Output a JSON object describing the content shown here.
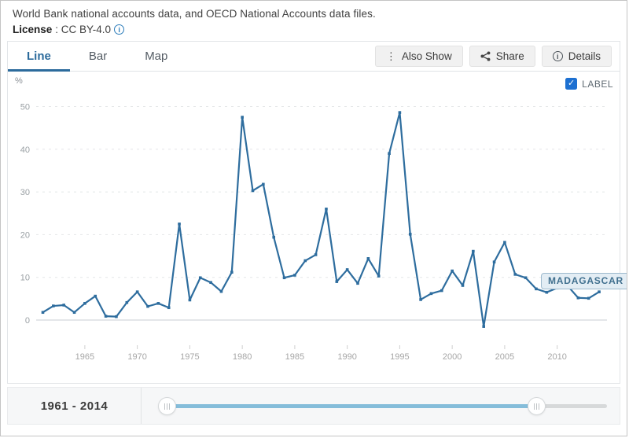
{
  "header": {
    "source_line": "World Bank national accounts data, and OECD National Accounts data files.",
    "license_label": "License",
    "license_value": ": CC BY-4.0",
    "license_info_icon": "info-circle-icon"
  },
  "tabs": [
    {
      "label": "Line",
      "active": true
    },
    {
      "label": "Bar",
      "active": false
    },
    {
      "label": "Map",
      "active": false
    }
  ],
  "toolbar": {
    "also_show_label": "Also Show",
    "share_label": "Share",
    "details_label": "Details"
  },
  "chart": {
    "unit_label": "%",
    "label_checkbox_text": "LABEL",
    "label_checkbox_checked": true,
    "checkmark": "✓",
    "series_tag": "MADAGASCAR",
    "colors": {
      "line": "#2e6d9e",
      "active_tab": "#2c6b9c",
      "checkbox": "#1d70d1",
      "grid": "#e4e6e8",
      "zero_axis": "#c9ced3",
      "axis_text": "#9aa0a4",
      "slider_fill": "#85bdda"
    }
  },
  "chart_data": {
    "type": "line",
    "title": "",
    "xlabel": "",
    "ylabel": "%",
    "grid": "horizontal-dashed",
    "ylim": [
      -5,
      53
    ],
    "yticks": [
      0,
      10,
      20,
      30,
      40,
      50
    ],
    "xticks": [
      1965,
      1970,
      1975,
      1980,
      1985,
      1990,
      1995,
      2000,
      2005,
      2010
    ],
    "x": [
      1961,
      1962,
      1963,
      1964,
      1965,
      1966,
      1967,
      1968,
      1969,
      1970,
      1971,
      1972,
      1973,
      1974,
      1975,
      1976,
      1977,
      1978,
      1979,
      1980,
      1981,
      1982,
      1983,
      1984,
      1985,
      1986,
      1987,
      1988,
      1989,
      1990,
      1991,
      1992,
      1993,
      1994,
      1995,
      1996,
      1997,
      1998,
      1999,
      2000,
      2001,
      2002,
      2003,
      2004,
      2005,
      2006,
      2007,
      2008,
      2009,
      2010,
      2011,
      2012,
      2013,
      2014
    ],
    "series": [
      {
        "name": "MADAGASCAR",
        "color": "#2e6d9e",
        "values": [
          1.8,
          3.3,
          3.5,
          1.8,
          3.9,
          5.6,
          0.9,
          0.8,
          4.1,
          6.6,
          3.2,
          3.9,
          2.9,
          22.5,
          4.7,
          9.9,
          8.8,
          6.7,
          11.2,
          47.5,
          30.3,
          31.8,
          19.4,
          9.9,
          10.5,
          13.9,
          15.3,
          26.0,
          9.0,
          11.8,
          8.6,
          14.4,
          10.3,
          39.0,
          48.6,
          20.1,
          4.8,
          6.2,
          6.9,
          11.5,
          8.1,
          16.1,
          -1.5,
          13.6,
          18.2,
          10.7,
          9.9,
          7.3,
          6.5,
          7.5,
          8.0,
          5.2,
          5.1,
          6.6
        ]
      }
    ],
    "legend": "in-chart series tag at line end"
  },
  "timeline": {
    "range_label": "1961 - 2014",
    "start_year": "1961",
    "end_year": "2014"
  }
}
